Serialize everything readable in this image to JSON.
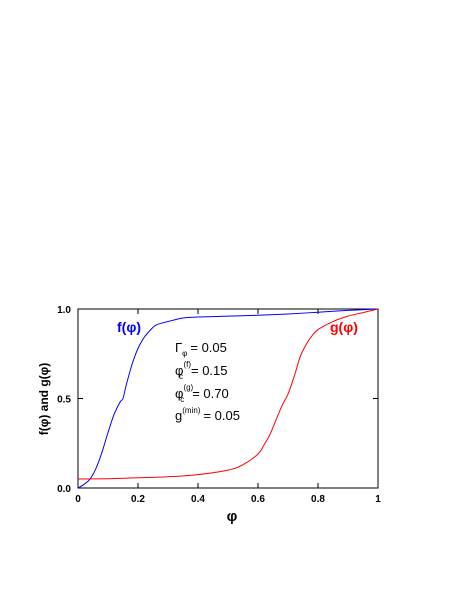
{
  "colors": {
    "f": "#0000ff",
    "g": "#ff0000",
    "axis": "#000000"
  },
  "chart_data": {
    "type": "line",
    "xlabel": "φ",
    "ylabel": "f(φ) and g(φ)",
    "xlim": [
      0,
      1
    ],
    "ylim": [
      0,
      1
    ],
    "xticks": [
      0,
      0.2,
      0.4,
      0.6,
      0.8,
      1
    ],
    "xtick_labels": [
      "0",
      "0.2",
      "0.4",
      "0.6",
      "0.8",
      "1"
    ],
    "yticks": [
      0,
      0.5,
      1
    ],
    "ytick_labels": [
      "0.0",
      "0.5",
      "1.0"
    ],
    "grid": false,
    "series": [
      {
        "name": "f(φ)",
        "color": "#0000ff",
        "x": [
          0,
          0.02,
          0.04,
          0.06,
          0.08,
          0.1,
          0.12,
          0.14,
          0.15,
          0.16,
          0.18,
          0.2,
          0.22,
          0.24,
          0.26,
          0.3,
          0.35,
          0.4,
          0.5,
          0.6,
          0.7,
          0.8,
          0.9,
          1.0
        ],
        "y": [
          0.0,
          0.02,
          0.05,
          0.11,
          0.2,
          0.31,
          0.41,
          0.48,
          0.5,
          0.57,
          0.69,
          0.78,
          0.84,
          0.88,
          0.91,
          0.93,
          0.95,
          0.955,
          0.96,
          0.965,
          0.972,
          0.982,
          0.992,
          1.0
        ]
      },
      {
        "name": "g(φ)",
        "color": "#ff0000",
        "x": [
          0,
          0.1,
          0.2,
          0.3,
          0.4,
          0.5,
          0.55,
          0.6,
          0.62,
          0.64,
          0.66,
          0.68,
          0.7,
          0.72,
          0.74,
          0.76,
          0.78,
          0.8,
          0.85,
          0.9,
          0.95,
          1.0
        ],
        "y": [
          0.05,
          0.052,
          0.057,
          0.063,
          0.075,
          0.1,
          0.13,
          0.19,
          0.24,
          0.3,
          0.38,
          0.46,
          0.525,
          0.62,
          0.73,
          0.8,
          0.85,
          0.885,
          0.93,
          0.96,
          0.98,
          1.0
        ]
      }
    ],
    "series_labels": [
      "f(φ)",
      "g(φ)"
    ],
    "annotations": {
      "gamma": {
        "sym": "Γ",
        "sub": "φ",
        "value": "= 0.05"
      },
      "phi_f": {
        "sym": "φ",
        "sub": "c",
        "sup": "(f)",
        "value": "= 0.15"
      },
      "phi_g": {
        "sym": "φ",
        "sub": "c",
        "sup": "(g)",
        "value": "= 0.70"
      },
      "gmin": {
        "sym": "g",
        "sup": "(min)",
        "value": "= 0.05"
      }
    }
  }
}
